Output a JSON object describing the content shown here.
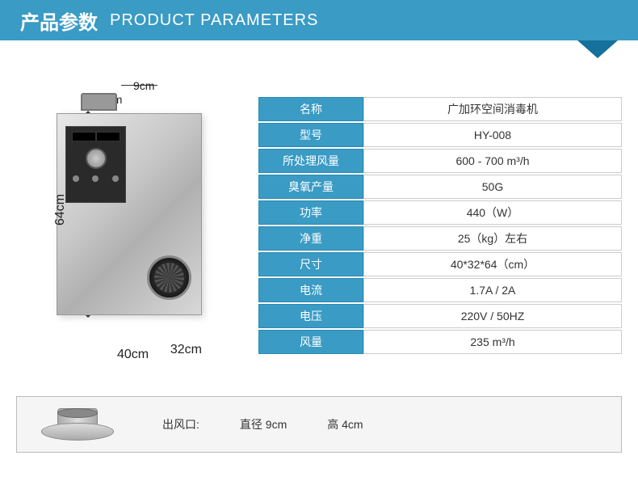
{
  "header": {
    "title_cn": "产品参数",
    "title_en": "PRODUCT PARAMETERS"
  },
  "dimensions": {
    "outlet_diameter": "9cm",
    "outlet_height": "4cm",
    "height": "64cm",
    "width": "40cm",
    "depth": "32cm"
  },
  "specs": [
    {
      "label": "名称",
      "value": "广加环空间消毒机"
    },
    {
      "label": "型号",
      "value": "HY-008"
    },
    {
      "label": "所处理风量",
      "value": "600 - 700 m³/h"
    },
    {
      "label": "臭氧产量",
      "value": "50G"
    },
    {
      "label": "功率",
      "value": "440（W）"
    },
    {
      "label": "净重",
      "value": "25（kg）左右"
    },
    {
      "label": "尺寸",
      "value": "40*32*64（cm）"
    },
    {
      "label": "电流",
      "value": "1.7A / 2A"
    },
    {
      "label": "电压",
      "value": "220V / 50HZ"
    },
    {
      "label": "风量",
      "value": "235 m³/h"
    }
  ],
  "outlet": {
    "label": "出风口:",
    "diameter": "直径 9cm",
    "height": "高 4cm"
  },
  "colors": {
    "header_bg": "#3a9bc4",
    "tab_marker": "#15709c",
    "border": "#cccccc",
    "text": "#333333"
  }
}
